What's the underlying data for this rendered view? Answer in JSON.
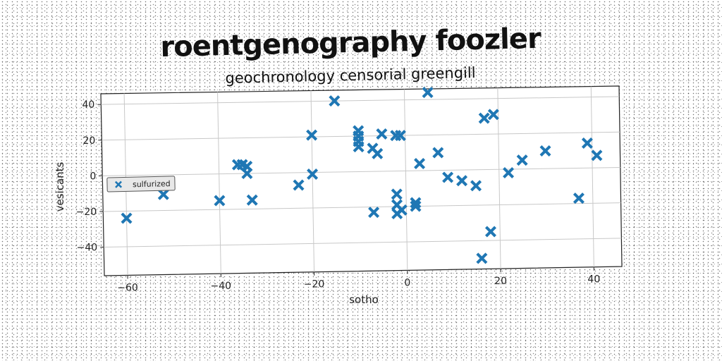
{
  "chart_data": {
    "type": "scatter",
    "title": "roentgenography foozler",
    "subtitle": "geochronology censorial greengill",
    "xlabel": "sotho",
    "ylabel": "vesicants",
    "xlim": [
      -65,
      46
    ],
    "ylim": [
      -56,
      46
    ],
    "xticks": [
      -60,
      -40,
      -20,
      0,
      20,
      40
    ],
    "yticks": [
      -40,
      -20,
      0,
      20,
      40
    ],
    "grid": true,
    "legend_position": "center-left",
    "marker": "X",
    "color": "#1f77b4",
    "series": [
      {
        "name": "sulfurized",
        "points": [
          [
            -60,
            -24
          ],
          [
            -52,
            -11
          ],
          [
            -40,
            -15
          ],
          [
            -36,
            5
          ],
          [
            -35,
            5
          ],
          [
            -34,
            4
          ],
          [
            -34,
            0
          ],
          [
            -33,
            -15
          ],
          [
            -23,
            -7
          ],
          [
            -20,
            21
          ],
          [
            -20,
            -1
          ],
          [
            -15,
            40
          ],
          [
            -10,
            23
          ],
          [
            -10,
            20
          ],
          [
            -10,
            17
          ],
          [
            -10,
            14
          ],
          [
            -7,
            13
          ],
          [
            -6,
            10
          ],
          [
            -5,
            21
          ],
          [
            -7,
            -23
          ],
          [
            -2,
            20
          ],
          [
            -1,
            20
          ],
          [
            -2,
            -13
          ],
          [
            -2,
            -19
          ],
          [
            -2,
            -24
          ],
          [
            -1,
            -22
          ],
          [
            2,
            -20
          ],
          [
            2,
            -18
          ],
          [
            3,
            4
          ],
          [
            5,
            44
          ],
          [
            7,
            10
          ],
          [
            9,
            -4
          ],
          [
            12,
            -6
          ],
          [
            15,
            -9
          ],
          [
            16,
            -50
          ],
          [
            17,
            29
          ],
          [
            19,
            31
          ],
          [
            18,
            -35
          ],
          [
            22,
            -2
          ],
          [
            25,
            5
          ],
          [
            30,
            10
          ],
          [
            37,
            -17
          ],
          [
            39,
            14
          ],
          [
            41,
            7
          ]
        ]
      }
    ]
  },
  "legend": {
    "label": "sulfurized"
  }
}
